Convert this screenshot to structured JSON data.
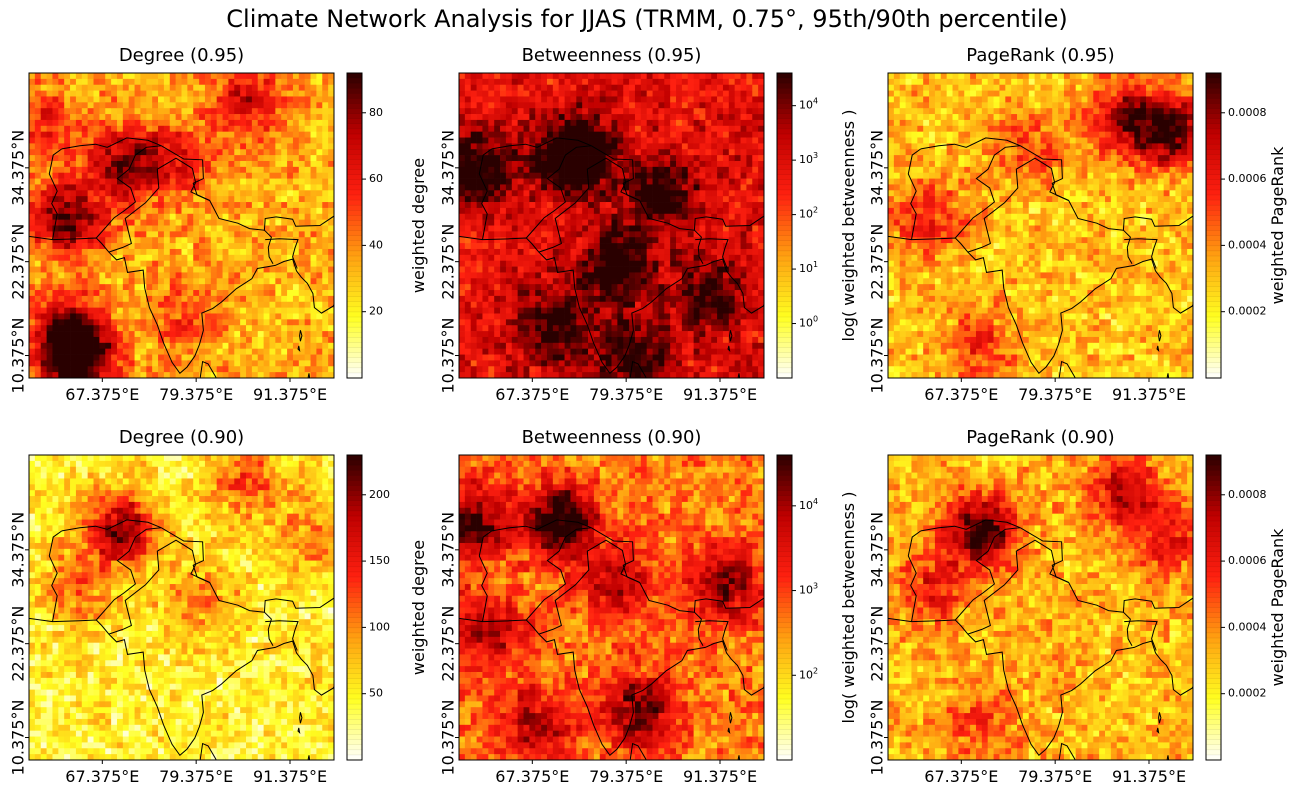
{
  "figure": {
    "title": "Climate Network Analysis for JJAS (TRMM, 0.75°, 95th/90th percentile)"
  },
  "axes": {
    "x_ticks": [
      "67.375°E",
      "79.375°E",
      "91.375°E"
    ],
    "y_ticks": [
      "10.375°N",
      "22.375°N",
      "34.375°N"
    ]
  },
  "colormap": {
    "name": "hot_r",
    "stops": [
      "#ffffff",
      "#ffff20",
      "#ffa010",
      "#ff2010",
      "#c00000",
      "#2a0000"
    ]
  },
  "panels": [
    {
      "title": "Degree (0.95)",
      "colorbar": {
        "label": "weighted degree",
        "ticks": [
          "20",
          "40",
          "60",
          "80"
        ],
        "scale": "linear"
      },
      "hotspots": [
        {
          "lon": 64.5,
          "lat": 9.5,
          "v": 1.0
        },
        {
          "lon": 63.0,
          "lat": 13.0,
          "v": 0.9
        },
        {
          "lon": 63.0,
          "lat": 28.0,
          "v": 0.9
        },
        {
          "lon": 70.0,
          "lat": 35.0,
          "v": 0.8
        },
        {
          "lon": 77.0,
          "lat": 35.0,
          "v": 0.5
        },
        {
          "lon": 86.0,
          "lat": 43.0,
          "v": 0.6
        },
        {
          "lon": 60.0,
          "lat": 40.0,
          "v": 0.4
        },
        {
          "lon": 78.0,
          "lat": 16.0,
          "v": 0.3
        }
      ],
      "base": 0.35
    },
    {
      "title": "Betweenness (0.95)",
      "colorbar": {
        "label": "log( weighted betweenness )",
        "ticks": [
          "10^0",
          "10^1",
          "10^2",
          "10^3",
          "10^4"
        ],
        "scale": "log"
      },
      "hotspots": [
        {
          "lon": 73.0,
          "lat": 36.0,
          "v": 1.0
        },
        {
          "lon": 60.0,
          "lat": 34.0,
          "v": 0.7
        },
        {
          "lon": 78.0,
          "lat": 22.0,
          "v": 0.7
        },
        {
          "lon": 84.0,
          "lat": 31.0,
          "v": 0.6
        },
        {
          "lon": 70.0,
          "lat": 14.0,
          "v": 0.6
        },
        {
          "lon": 90.0,
          "lat": 18.0,
          "v": 0.5
        },
        {
          "lon": 80.0,
          "lat": 10.0,
          "v": 0.6
        }
      ],
      "base": 0.68
    },
    {
      "title": "PageRank (0.95)",
      "colorbar": {
        "label": "weighted PageRank",
        "ticks": [
          "0.0002",
          "0.0004",
          "0.0006",
          "0.0008"
        ],
        "scale": "linear"
      },
      "hotspots": [
        {
          "lon": 94.0,
          "lat": 39.0,
          "v": 1.0
        },
        {
          "lon": 88.0,
          "lat": 41.0,
          "v": 0.7
        },
        {
          "lon": 63.0,
          "lat": 28.0,
          "v": 0.5
        },
        {
          "lon": 70.0,
          "lat": 12.0,
          "v": 0.4
        },
        {
          "lon": 76.0,
          "lat": 37.0,
          "v": 0.4
        }
      ],
      "base": 0.32
    },
    {
      "title": "Degree (0.90)",
      "colorbar": {
        "label": "weighted degree",
        "ticks": [
          "50",
          "100",
          "150",
          "200"
        ],
        "scale": "linear"
      },
      "hotspots": [
        {
          "lon": 70.0,
          "lat": 37.0,
          "v": 1.0
        },
        {
          "lon": 86.0,
          "lat": 43.0,
          "v": 0.5
        },
        {
          "lon": 64.0,
          "lat": 30.0,
          "v": 0.45
        },
        {
          "lon": 80.0,
          "lat": 28.0,
          "v": 0.35
        },
        {
          "lon": 94.0,
          "lat": 36.0,
          "v": 0.35
        }
      ],
      "base": 0.22
    },
    {
      "title": "Betweenness (0.90)",
      "colorbar": {
        "label": "log( weighted betweenness )",
        "ticks": [
          "10^2",
          "10^3",
          "10^4"
        ],
        "scale": "log"
      },
      "hotspots": [
        {
          "lon": 71.0,
          "lat": 38.0,
          "v": 1.0
        },
        {
          "lon": 60.0,
          "lat": 38.0,
          "v": 0.8
        },
        {
          "lon": 81.0,
          "lat": 14.0,
          "v": 0.75
        },
        {
          "lon": 62.0,
          "lat": 24.0,
          "v": 0.6
        },
        {
          "lon": 92.0,
          "lat": 30.0,
          "v": 0.65
        },
        {
          "lon": 78.0,
          "lat": 30.0,
          "v": 0.55
        },
        {
          "lon": 68.0,
          "lat": 12.0,
          "v": 0.55
        }
      ],
      "base": 0.45
    },
    {
      "title": "PageRank (0.90)",
      "colorbar": {
        "label": "weighted PageRank",
        "ticks": [
          "0.0002",
          "0.0004",
          "0.0006",
          "0.0008"
        ],
        "scale": "linear"
      },
      "hotspots": [
        {
          "lon": 70.0,
          "lat": 37.0,
          "v": 1.0
        },
        {
          "lon": 88.0,
          "lat": 42.0,
          "v": 0.65
        },
        {
          "lon": 94.0,
          "lat": 36.0,
          "v": 0.55
        },
        {
          "lon": 64.0,
          "lat": 30.0,
          "v": 0.5
        },
        {
          "lon": 70.0,
          "lat": 12.0,
          "v": 0.4
        }
      ],
      "base": 0.34
    }
  ]
}
